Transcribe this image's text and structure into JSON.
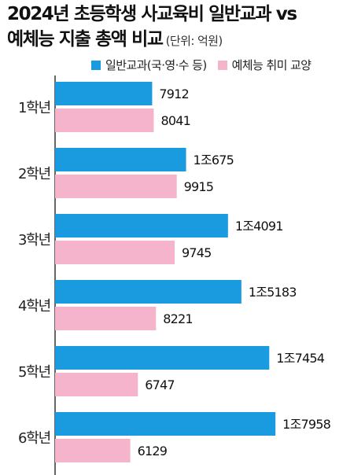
{
  "header": {
    "title_line1": "2024년 초등학생 사교육비 일반교과 vs",
    "title_line2": "예체능 지출 총액 비교",
    "unit": "(단위: 억원)"
  },
  "colors": {
    "general": "#1a9be0",
    "arts": "#f5b3cc",
    "axis": "#333333"
  },
  "chart_data": {
    "type": "bar",
    "orientation": "horizontal",
    "title": "2024년 초등학생 사교육비 일반교과 vs 예체능 지출 총액 비교",
    "unit": "(단위: 억원)",
    "categories": [
      "1학년",
      "2학년",
      "3학년",
      "4학년",
      "5학년",
      "6학년"
    ],
    "series": [
      {
        "name": "일반교과(국·영·수 등)",
        "values": [
          7912,
          10675,
          14091,
          15183,
          17454,
          17958
        ],
        "labels": [
          "7912",
          "1조675",
          "1조4091",
          "1조5183",
          "1조7454",
          "1조7958"
        ]
      },
      {
        "name": "예체능 취미 교양",
        "values": [
          8041,
          9915,
          9745,
          8221,
          6747,
          6129
        ],
        "labels": [
          "8041",
          "9915",
          "9745",
          "8221",
          "6747",
          "6129"
        ]
      }
    ],
    "xlim": [
      0,
      20000
    ],
    "legend_position": "top",
    "grid": false
  }
}
